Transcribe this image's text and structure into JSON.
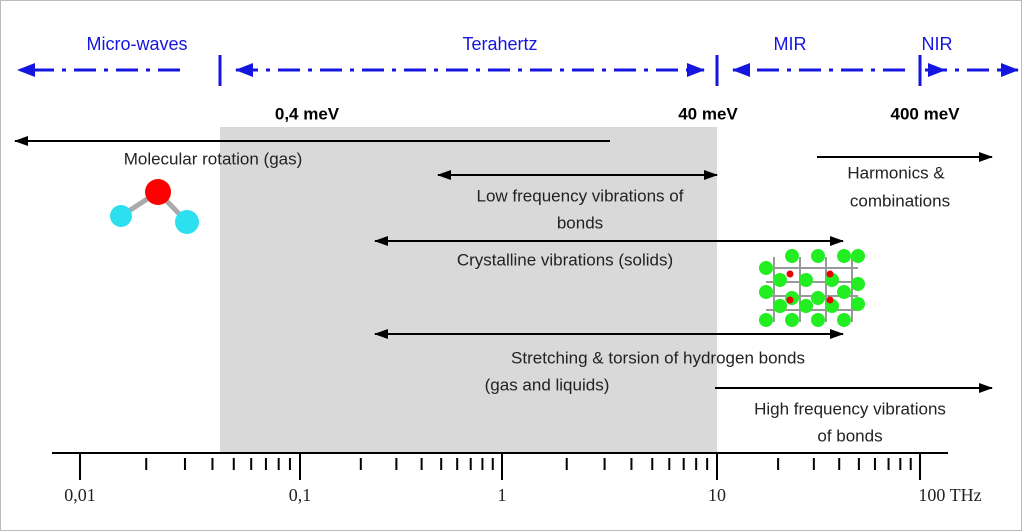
{
  "bands": {
    "microwaves": "Micro-waves",
    "terahertz": "Terahertz",
    "mir": "MIR",
    "nir": "NIR"
  },
  "energies": [
    "0,4 meV",
    "40 meV",
    "400 meV"
  ],
  "processes": {
    "molecular_rotation": [
      "Molecular rotation (gas)"
    ],
    "low_frequency": [
      "Low frequency vibrations of",
      "bonds"
    ],
    "harmonics": [
      "Harmonics &",
      "combinations"
    ],
    "crystalline": [
      "Crystalline vibrations (solids)"
    ],
    "stretching": [
      "Stretching & torsion of hydrogen bonds",
      "(gas and liquids)"
    ],
    "high_frequency": [
      "High frequency vibrations",
      "of bonds"
    ]
  },
  "axis": {
    "ticks": [
      "0,01",
      "0,1",
      "1",
      "10",
      "100 THz"
    ]
  }
}
